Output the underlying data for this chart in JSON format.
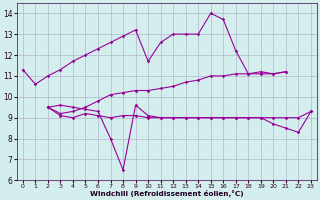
{
  "x": [
    0,
    1,
    2,
    3,
    4,
    5,
    6,
    7,
    8,
    9,
    10,
    11,
    12,
    13,
    14,
    15,
    16,
    17,
    18,
    19,
    20,
    21,
    22,
    23
  ],
  "line1": [
    11.3,
    10.6,
    11.0,
    11.3,
    11.7,
    12.0,
    12.3,
    12.6,
    12.9,
    13.2,
    11.7,
    12.6,
    13.0,
    13.0,
    13.0,
    14.0,
    13.7,
    12.2,
    11.1,
    11.2,
    11.1,
    11.2,
    null,
    null
  ],
  "line2": [
    null,
    null,
    9.5,
    9.6,
    9.5,
    9.4,
    9.3,
    8.0,
    6.5,
    9.6,
    9.1,
    9.0,
    9.0,
    9.0,
    9.0,
    9.0,
    9.0,
    9.0,
    9.0,
    9.0,
    8.7,
    8.5,
    8.3,
    9.3
  ],
  "line3": [
    null,
    null,
    9.5,
    9.1,
    9.0,
    9.2,
    9.1,
    9.0,
    9.1,
    9.1,
    9.0,
    9.0,
    9.0,
    9.0,
    9.0,
    9.0,
    9.0,
    9.0,
    9.0,
    9.0,
    9.0,
    9.0,
    9.0,
    9.3
  ],
  "line4": [
    null,
    null,
    9.5,
    9.2,
    9.3,
    9.5,
    9.8,
    10.1,
    10.2,
    10.3,
    10.3,
    10.4,
    10.5,
    10.7,
    10.8,
    11.0,
    11.0,
    11.1,
    11.1,
    11.1,
    11.1,
    11.2,
    null,
    null
  ],
  "line_color": "#990099",
  "bg_color": "#d4eeee",
  "grid_color": "#b0b8cc",
  "xlabel": "Windchill (Refroidissement éolien,°C)",
  "ylim": [
    6,
    14.5
  ],
  "ymin_display": 6,
  "xlim": [
    -0.5,
    23.5
  ],
  "yticks": [
    6,
    7,
    8,
    9,
    10,
    11,
    12,
    13,
    14
  ],
  "xticks": [
    0,
    1,
    2,
    3,
    4,
    5,
    6,
    7,
    8,
    9,
    10,
    11,
    12,
    13,
    14,
    15,
    16,
    17,
    18,
    19,
    20,
    21,
    22,
    23
  ]
}
